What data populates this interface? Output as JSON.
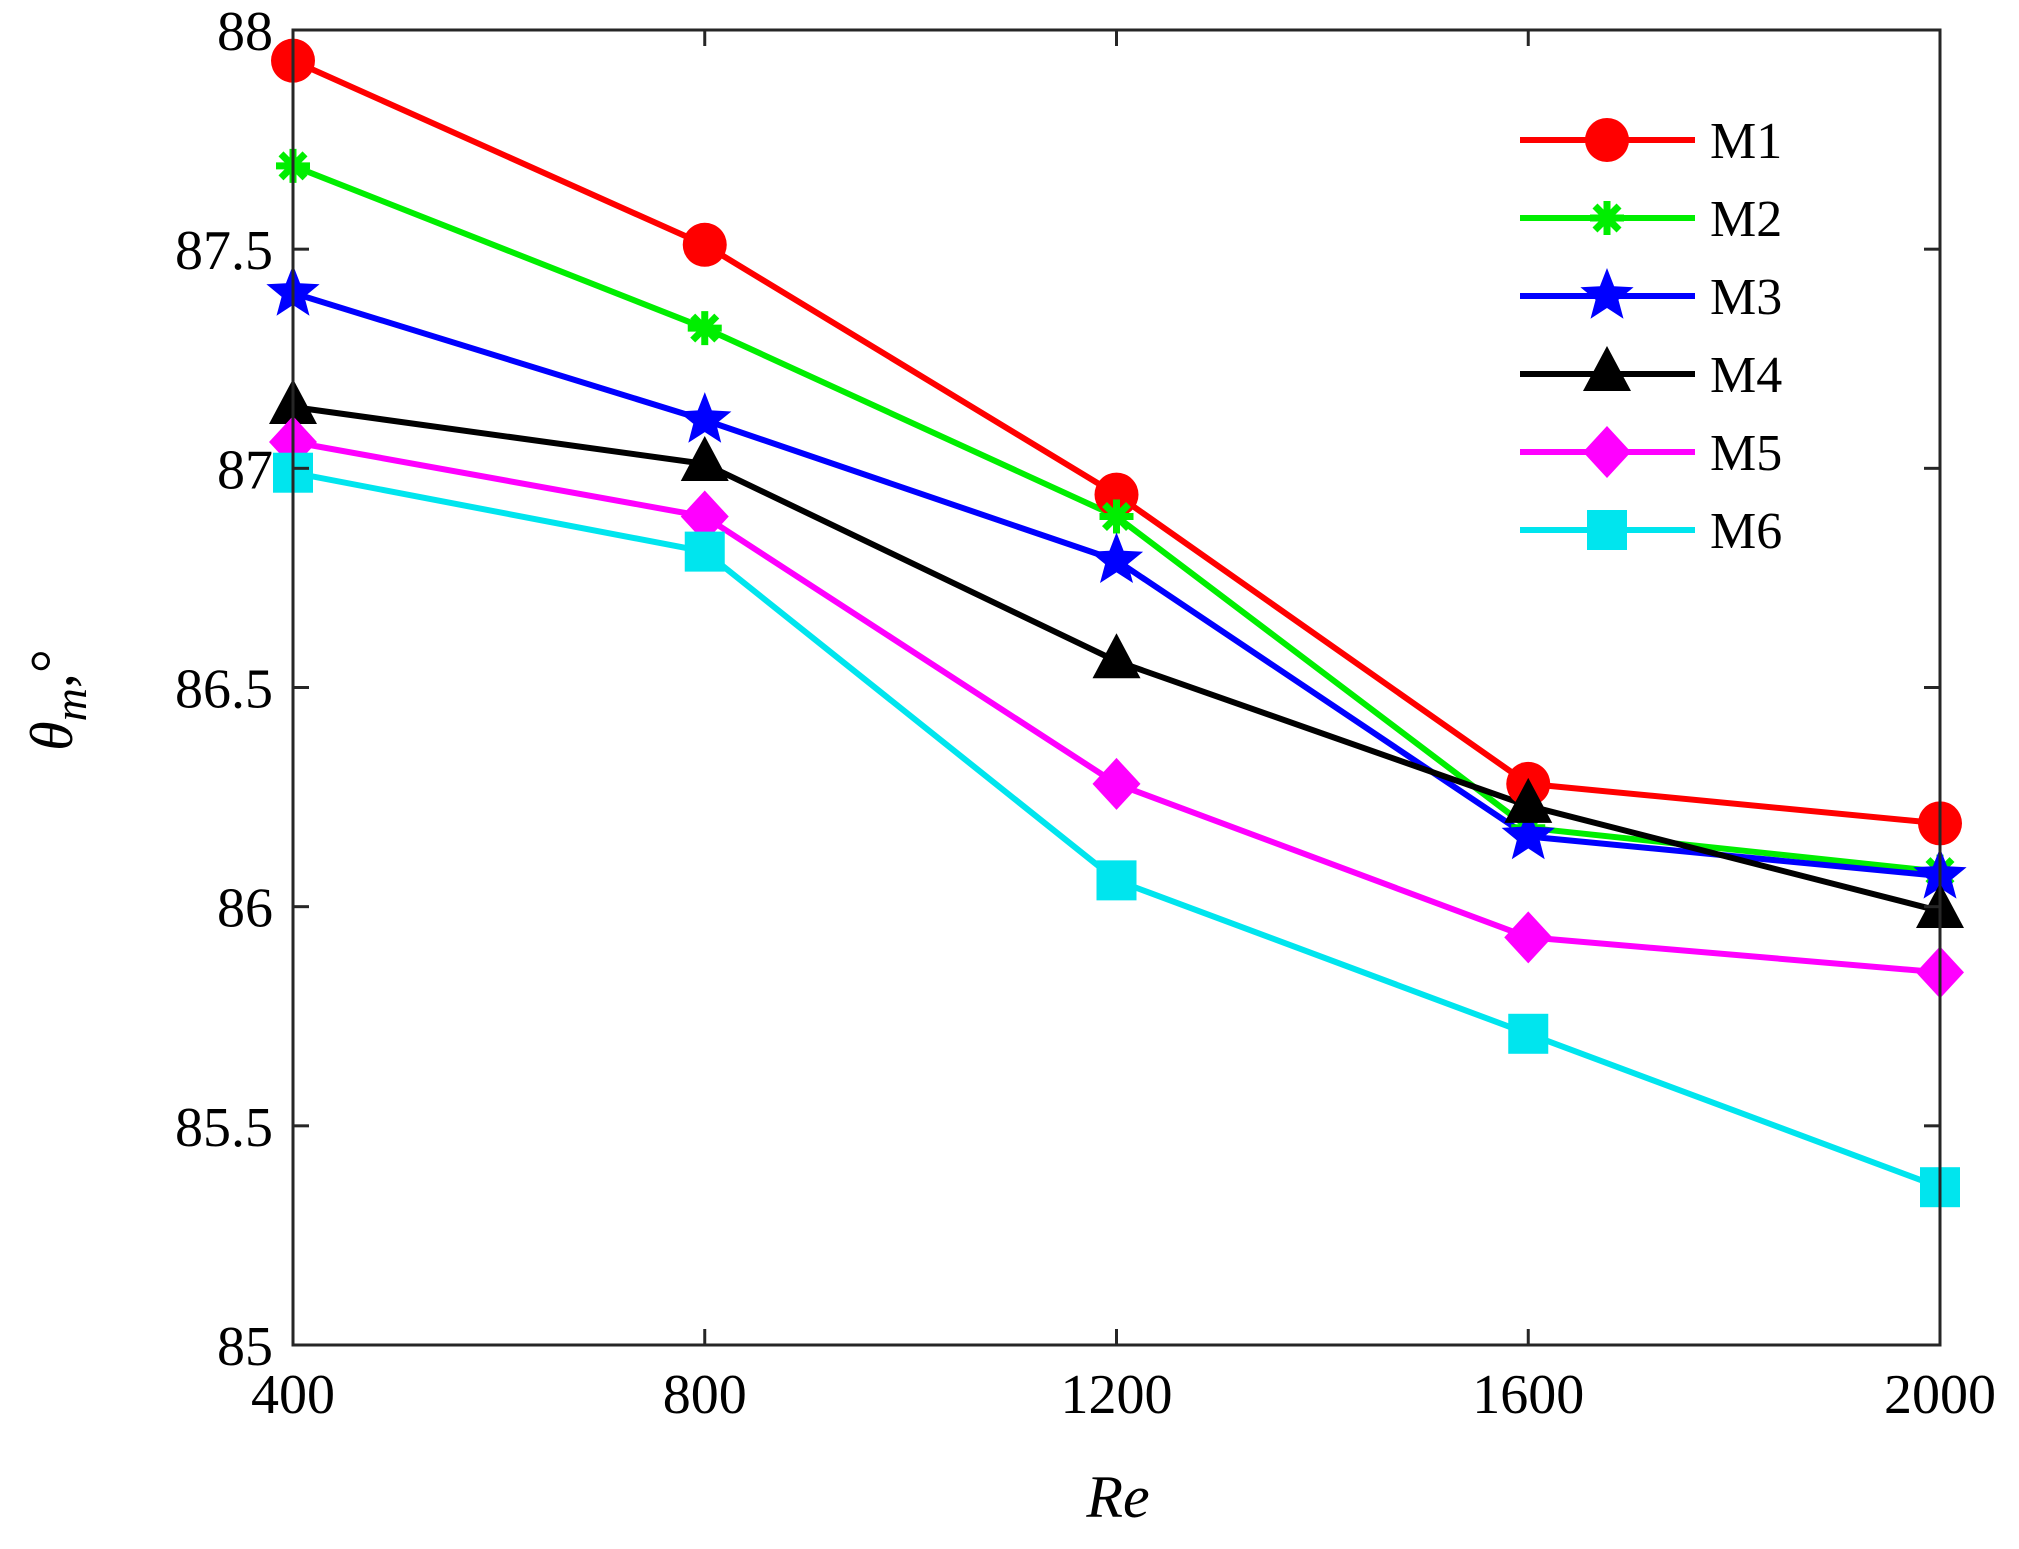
{
  "chart_data": {
    "type": "line",
    "title": "",
    "xlabel": "Re",
    "ylabel_symbol": "θ",
    "ylabel_subscript": "m",
    "ylabel_suffix": ",°",
    "x": [
      400,
      800,
      1200,
      1600,
      2000
    ],
    "xlim": [
      400,
      2000
    ],
    "ylim": [
      85,
      88
    ],
    "x_ticks": [
      "400",
      "800",
      "1200",
      "1600",
      "2000"
    ],
    "y_ticks": [
      "85",
      "85.5",
      "86",
      "86.5",
      "87",
      "87.5",
      "88"
    ],
    "grid": false,
    "legend_position": "top-right",
    "series": [
      {
        "name": "M1",
        "color": "#ff0000",
        "marker": "circle",
        "values": [
          87.93,
          87.51,
          86.94,
          86.28,
          86.19
        ]
      },
      {
        "name": "M2",
        "color": "#00ee00",
        "marker": "asterisk",
        "values": [
          87.69,
          87.32,
          86.89,
          86.18,
          86.08
        ]
      },
      {
        "name": "M3",
        "color": "#0000ff",
        "marker": "star",
        "values": [
          87.4,
          87.11,
          86.79,
          86.16,
          86.07
        ]
      },
      {
        "name": "M4",
        "color": "#000000",
        "marker": "triangle",
        "values": [
          87.14,
          87.01,
          86.56,
          86.23,
          85.99
        ]
      },
      {
        "name": "M5",
        "color": "#ff00ff",
        "marker": "diamond",
        "values": [
          87.06,
          86.89,
          86.28,
          85.93,
          85.85
        ]
      },
      {
        "name": "M6",
        "color": "#00e5ee",
        "marker": "square",
        "values": [
          86.99,
          86.81,
          86.06,
          85.71,
          85.36
        ]
      }
    ]
  }
}
